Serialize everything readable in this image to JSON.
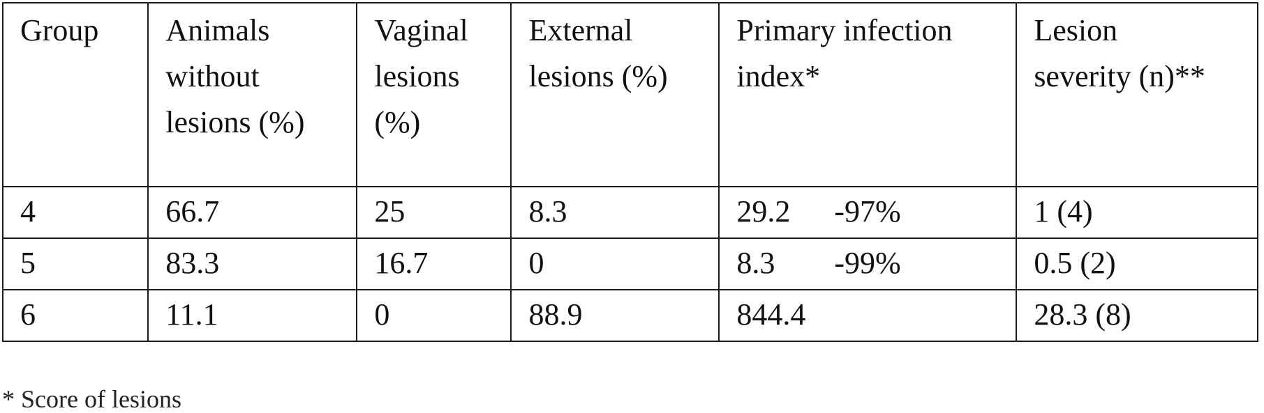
{
  "table": {
    "headers": [
      {
        "lines": [
          "Group"
        ]
      },
      {
        "lines": [
          "Animals",
          "without",
          "lesions (%)"
        ]
      },
      {
        "lines": [
          "Vaginal",
          "lesions",
          "(%)"
        ]
      },
      {
        "lines": [
          "External",
          "lesions (%)"
        ]
      },
      {
        "lines": [
          "Primary infection",
          "index*"
        ]
      },
      {
        "lines": [
          "Lesion",
          "severity (n)**"
        ]
      }
    ],
    "rows": [
      {
        "group": "4",
        "without_lesions": "66.7",
        "vaginal": "25",
        "external": "8.3",
        "pii_value": "29.2",
        "pii_change": "-97%",
        "severity": "1 (4)"
      },
      {
        "group": "5",
        "without_lesions": "83.3",
        "vaginal": "16.7",
        "external": "0",
        "pii_value": "8.3",
        "pii_change": "-99%",
        "severity": "0.5 (2)"
      },
      {
        "group": "6",
        "without_lesions": "11.1",
        "vaginal": "0",
        "external": "88.9",
        "pii_value": "844.4",
        "pii_change": "",
        "severity": "28.3 (8)"
      }
    ]
  },
  "footnote": "* Score of lesions"
}
